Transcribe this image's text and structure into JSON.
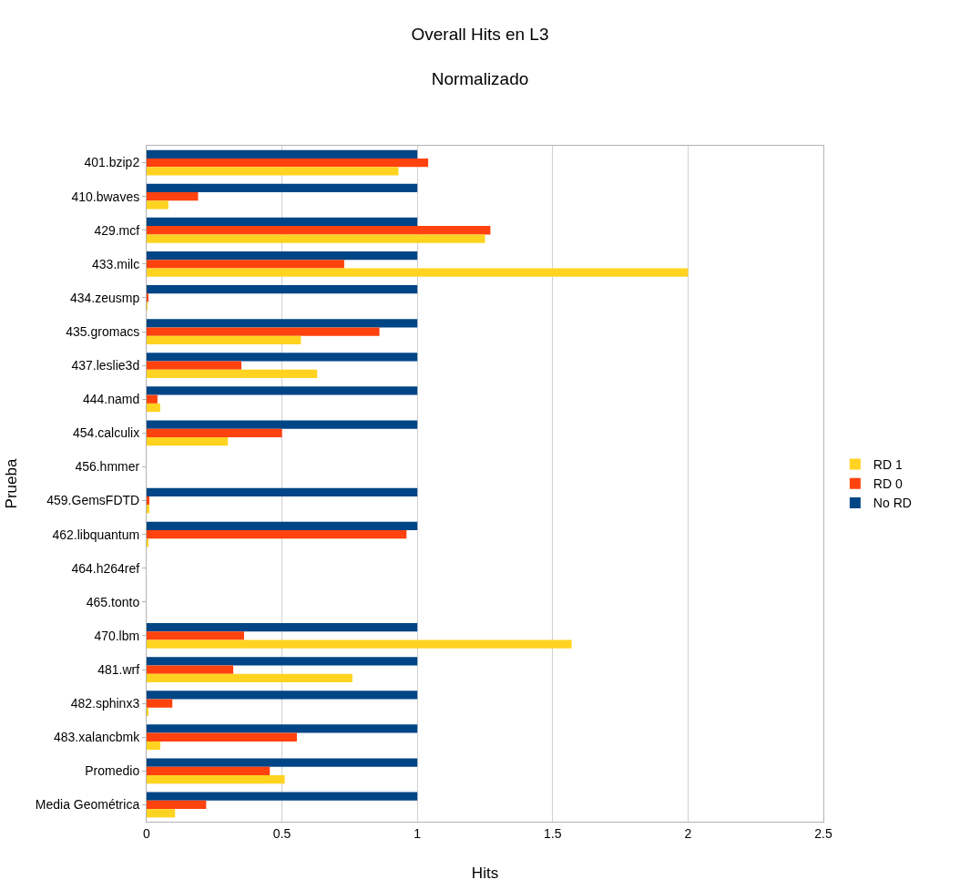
{
  "chart_data": {
    "type": "bar",
    "orientation": "horizontal",
    "title": "Overall Hits en L3",
    "subtitle": "Normalizado",
    "xlabel": "Hits",
    "ylabel": "Prueba",
    "categories": [
      "401.bzip2",
      "410.bwaves",
      "429.mcf",
      "433.milc",
      "434.zeusmp",
      "435.gromacs",
      "437.leslie3d",
      "444.namd",
      "454.calculix",
      "456.hmmer",
      "459.GemsFDTD",
      "462.libquantum",
      "464.h264ref",
      "465.tonto",
      "470.lbm",
      "481.wrf",
      "482.sphinx3",
      "483.xalancbmk",
      "Promedio",
      "Media Geométrica"
    ],
    "series": [
      {
        "name": "No RD",
        "color": "#004586",
        "values": [
          1,
          1,
          1,
          1,
          1,
          1,
          1,
          1,
          1,
          null,
          1,
          1,
          null,
          null,
          1,
          1,
          1,
          1,
          1,
          1
        ]
      },
      {
        "name": "RD 0",
        "color": "#ff420e",
        "values": [
          1.04,
          0.19,
          1.27,
          0.73,
          0.005,
          0.86,
          0.35,
          0.04,
          0.5,
          null,
          0.01,
          0.96,
          null,
          null,
          0.36,
          0.32,
          0.095,
          0.555,
          0.455,
          0.22
        ]
      },
      {
        "name": "RD 1",
        "color": "#ffd320",
        "values": [
          0.93,
          0.08,
          1.25,
          2.0,
          0.003,
          0.57,
          0.63,
          0.05,
          0.3,
          null,
          0.01,
          0.005,
          null,
          null,
          1.57,
          0.76,
          0.005,
          0.05,
          0.51,
          0.105
        ]
      }
    ],
    "xlim": [
      0,
      2.5
    ],
    "xticks": [
      0,
      0.5,
      1,
      1.5,
      2,
      2.5
    ],
    "grid": "x",
    "legend": "right"
  }
}
